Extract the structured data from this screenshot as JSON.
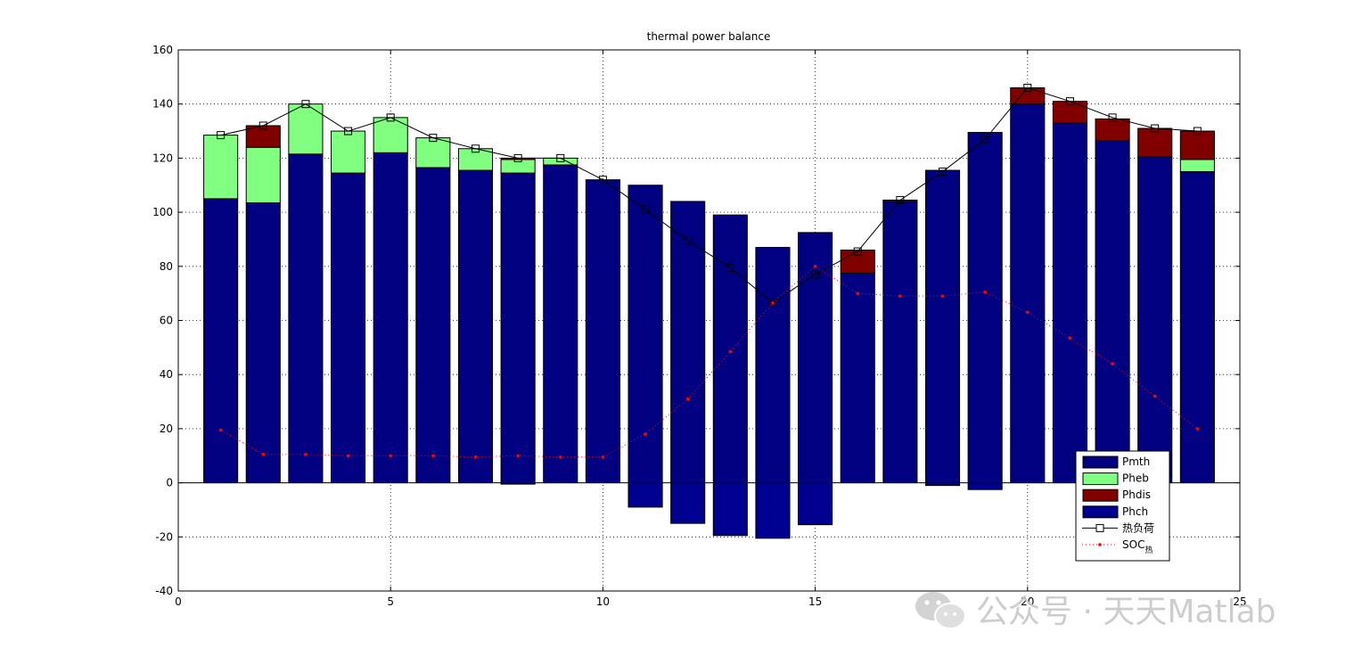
{
  "chart_data": {
    "type": "bar",
    "title": "thermal power balance",
    "xlabel": "",
    "ylabel": "",
    "xlim": [
      0,
      25
    ],
    "ylim": [
      -40,
      160
    ],
    "xticks": [
      "0",
      "5",
      "10",
      "15",
      "20",
      "25"
    ],
    "yticks": [
      "-40",
      "-20",
      "0",
      "20",
      "40",
      "60",
      "80",
      "100",
      "120",
      "140",
      "160"
    ],
    "grid": true,
    "legend_position": "bottom-right",
    "x": [
      1,
      2,
      3,
      4,
      5,
      6,
      7,
      8,
      9,
      10,
      11,
      12,
      13,
      14,
      15,
      16,
      17,
      18,
      19,
      20,
      21,
      22,
      23,
      24
    ],
    "series": [
      {
        "name": "Pmth",
        "kind": "bar-stacked",
        "color": "#000080",
        "values": [
          105,
          103.5,
          121.5,
          114.5,
          122,
          116.5,
          115.5,
          114.5,
          117.5,
          112,
          110,
          104,
          99,
          87,
          92.5,
          77.5,
          104,
          115.5,
          129.5,
          140,
          133,
          126.5,
          120.5,
          115
        ]
      },
      {
        "name": "Pheb",
        "kind": "bar-stacked",
        "color": "#80ff80",
        "values": [
          23.5,
          20.5,
          18.5,
          15.5,
          13,
          11,
          8,
          5,
          2.5,
          0,
          0,
          0,
          0,
          0,
          0,
          0,
          0,
          0,
          0,
          0,
          0,
          0,
          0,
          4.5
        ]
      },
      {
        "name": "Phdis",
        "kind": "bar-stacked",
        "color": "#800000",
        "values": [
          0,
          8,
          0,
          0,
          0,
          0,
          0,
          0.5,
          0,
          0,
          0,
          0,
          0,
          0,
          0,
          8.5,
          0.5,
          0,
          0,
          6,
          8,
          8,
          10.5,
          10.5
        ]
      },
      {
        "name": "Phch",
        "kind": "bar-stacked",
        "color": "#000090",
        "values": [
          0,
          0,
          0,
          0,
          0,
          0,
          0,
          -0.5,
          0,
          0,
          -9,
          -15,
          -19.5,
          -20.5,
          -15.5,
          0,
          0,
          -1,
          -2.5,
          0,
          0,
          0,
          0,
          0
        ]
      },
      {
        "name": "热负荷",
        "kind": "line",
        "color": "#000000",
        "marker": "square",
        "values": [
          128.5,
          132,
          140,
          130,
          135,
          127.5,
          123.5,
          120,
          120,
          112,
          101,
          89.5,
          79.5,
          66.5,
          77,
          85.5,
          104.5,
          115,
          127,
          146,
          141,
          135,
          131,
          130
        ]
      },
      {
        "name": "SOC",
        "name_sub": "热",
        "kind": "line-dotted",
        "color": "#ff0000",
        "marker": "dot",
        "values": [
          19.5,
          10.5,
          10.5,
          10,
          10,
          10,
          9.5,
          10,
          9.5,
          9.5,
          18,
          31,
          48.5,
          66.5,
          80,
          70,
          69,
          69,
          70.5,
          63,
          53.5,
          44,
          32,
          20
        ]
      }
    ]
  },
  "watermark": {
    "text": "公众号 · 天天Matlab"
  }
}
